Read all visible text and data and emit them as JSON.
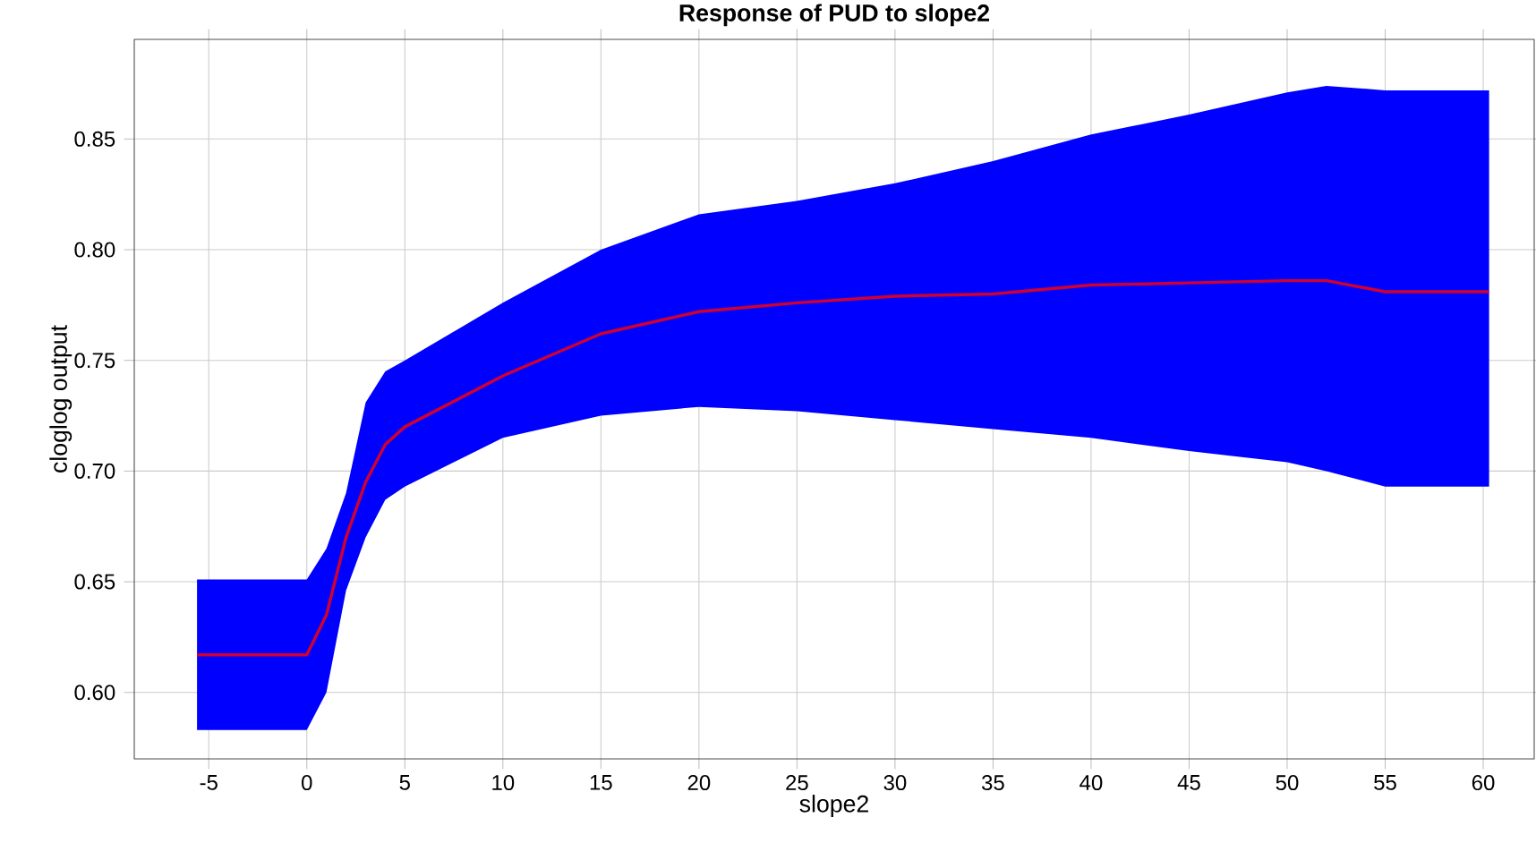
{
  "chart_data": {
    "type": "line",
    "title": "Response of PUD to slope2",
    "xlabel": "slope2",
    "ylabel": "cloglog output",
    "series": [
      {
        "color": "#d00030",
        "x": [
          -5.6,
          0,
          1,
          2,
          3,
          4,
          5,
          10,
          15,
          20,
          25,
          30,
          35,
          40,
          45,
          50,
          52,
          55,
          60.3
        ],
        "values": [
          0.617,
          0.617,
          0.635,
          0.67,
          0.695,
          0.712,
          0.72,
          0.743,
          0.762,
          0.772,
          0.776,
          0.779,
          0.78,
          0.784,
          0.785,
          0.786,
          0.786,
          0.781,
          0.781
        ],
        "lower": [
          0.583,
          0.583,
          0.6,
          0.646,
          0.67,
          0.687,
          0.693,
          0.715,
          0.725,
          0.729,
          0.727,
          0.723,
          0.719,
          0.715,
          0.709,
          0.704,
          0.7,
          0.693,
          0.693
        ],
        "upper": [
          0.651,
          0.651,
          0.665,
          0.69,
          0.731,
          0.745,
          0.75,
          0.776,
          0.8,
          0.816,
          0.822,
          0.83,
          0.84,
          0.852,
          0.861,
          0.871,
          0.874,
          0.872,
          0.872
        ]
      }
    ],
    "xlim": [
      -8.8,
      62.6
    ],
    "ylim": [
      0.57,
      0.895
    ],
    "xticks": [
      -5,
      0,
      5,
      10,
      15,
      20,
      25,
      30,
      35,
      40,
      45,
      50,
      55,
      60
    ],
    "yticks": [
      {
        "value": 0.6,
        "label": "0.60"
      },
      {
        "value": 0.65,
        "label": "0.65"
      },
      {
        "value": 0.7,
        "label": "0.70"
      },
      {
        "value": 0.75,
        "label": "0.75"
      },
      {
        "value": 0.8,
        "label": "0.80"
      },
      {
        "value": 0.85,
        "label": "0.85"
      }
    ],
    "grid": true,
    "marker": "none",
    "line_style": "solid"
  }
}
